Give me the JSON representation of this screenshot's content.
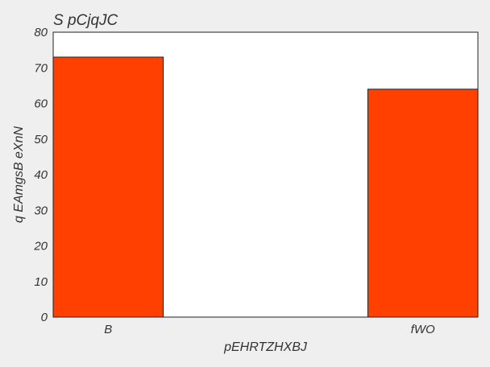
{
  "chart_data": {
    "type": "bar",
    "title": "S  pCjqJC",
    "xlabel": "pEHRTZHXBJ",
    "ylabel": "q EAmgsB eXnN",
    "categories": [
      "B",
      "fWO"
    ],
    "values": [
      73,
      64
    ],
    "ylim": [
      0,
      80
    ],
    "yticks": [
      0,
      10,
      20,
      30,
      40,
      50,
      60,
      70,
      80
    ],
    "bar_color": "#ff4000",
    "bar_edge_color": "#222222",
    "plot_background": "#ffffff",
    "figure_background": "#efefef",
    "grid": false,
    "legend": "none"
  }
}
